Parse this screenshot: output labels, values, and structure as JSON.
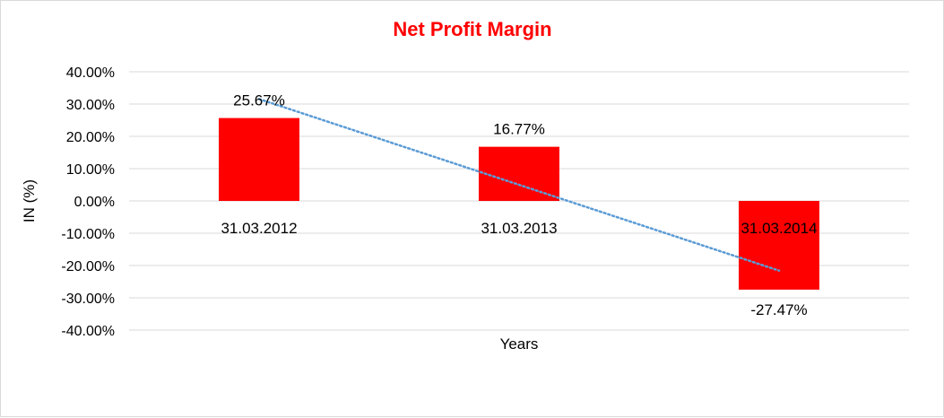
{
  "chart_data": {
    "type": "bar",
    "title": "Net Profit Margin",
    "title_color": "#ff0000",
    "xlabel": "Years",
    "ylabel": "IN (%)",
    "categories": [
      "31.03.2012",
      "31.03.2013",
      "31.03.2014"
    ],
    "values": [
      25.67,
      16.77,
      -27.47
    ],
    "data_labels": [
      "25.67%",
      "16.77%",
      "-27.47%"
    ],
    "ylim": [
      -40,
      40
    ],
    "y_ticks": [
      40,
      30,
      20,
      10,
      0,
      -10,
      -20,
      -30,
      -40
    ],
    "y_tick_labels": [
      "40.00%",
      "30.00%",
      "20.00%",
      "10.00%",
      "0.00%",
      "-10.00%",
      "-20.00%",
      "-30.00%",
      "-40.00%"
    ],
    "bar_color": "#ff0000",
    "trendline": {
      "type": "linear",
      "style": "dotted",
      "color": "#5b9bd5"
    },
    "grid": true,
    "grid_color": "#d9d9d9",
    "legend": "none"
  }
}
